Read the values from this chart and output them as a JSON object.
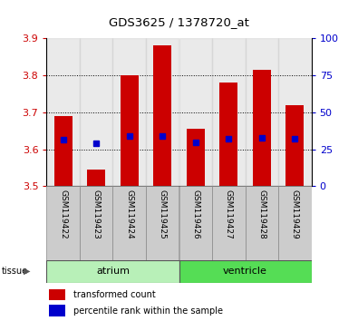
{
  "title": "GDS3625 / 1378720_at",
  "samples": [
    "GSM119422",
    "GSM119423",
    "GSM119424",
    "GSM119425",
    "GSM119426",
    "GSM119427",
    "GSM119428",
    "GSM119429"
  ],
  "red_values": [
    3.69,
    3.545,
    3.8,
    3.882,
    3.655,
    3.78,
    3.815,
    3.72
  ],
  "blue_values": [
    3.625,
    3.617,
    3.635,
    3.635,
    3.618,
    3.628,
    3.63,
    3.628
  ],
  "bar_bottom": 3.5,
  "ylim": [
    3.5,
    3.9
  ],
  "yticks_left": [
    3.5,
    3.6,
    3.7,
    3.8,
    3.9
  ],
  "yticks_right": [
    0,
    25,
    50,
    75,
    100
  ],
  "tissue_groups": [
    {
      "label": "atrium",
      "start": 0,
      "end": 4,
      "color_light": "#ccf0cc",
      "color_dark": "#66dd66"
    },
    {
      "label": "ventricle",
      "start": 4,
      "end": 8,
      "color_light": "#66dd66",
      "color_dark": "#44cc44"
    }
  ],
  "bar_color": "#cc0000",
  "dot_color": "#0000cc",
  "bar_width": 0.55,
  "legend_red": "transformed count",
  "legend_blue": "percentile rank within the sample",
  "left_tick_color": "#cc0000",
  "right_tick_color": "#0000cc",
  "grid_color": "black",
  "sample_box_color": "#cccccc",
  "tissue_label": "tissue"
}
